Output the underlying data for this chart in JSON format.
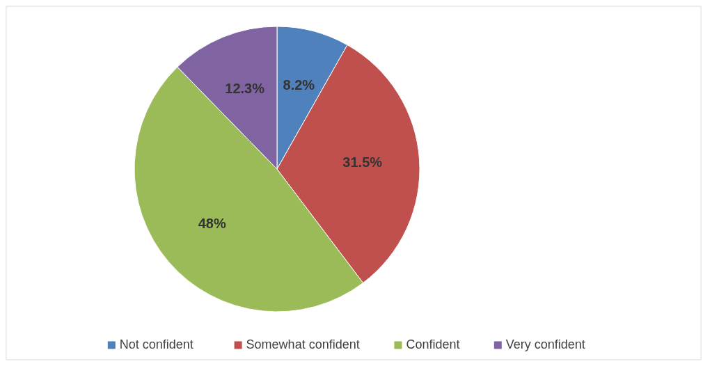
{
  "chart_data": {
    "type": "pie",
    "categories": [
      "Not confident",
      "Somewhat confident",
      "Confident",
      "Very confident"
    ],
    "values": [
      8.2,
      31.5,
      48,
      12.3
    ],
    "colors": [
      "#4f81bd",
      "#c0504d",
      "#9bbb59",
      "#8064a2"
    ],
    "value_labels": [
      "8.2%",
      "31.5%",
      "48%",
      "12.3%"
    ],
    "legend": "bottom"
  }
}
